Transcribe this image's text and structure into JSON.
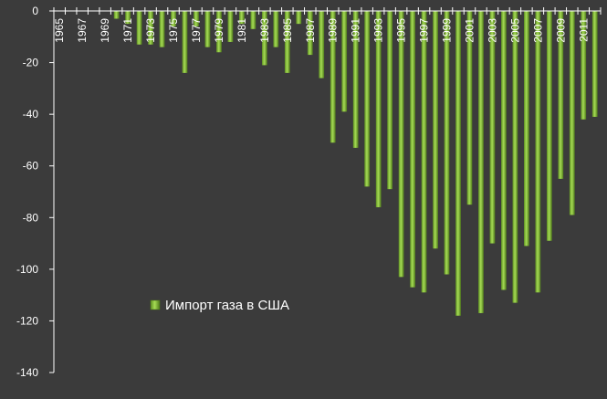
{
  "chart_data": {
    "type": "bar",
    "categories": [
      1965,
      1966,
      1967,
      1968,
      1969,
      1970,
      1971,
      1972,
      1973,
      1974,
      1975,
      1976,
      1977,
      1978,
      1979,
      1980,
      1981,
      1982,
      1983,
      1984,
      1985,
      1986,
      1987,
      1988,
      1989,
      1990,
      1991,
      1992,
      1993,
      1994,
      1995,
      1996,
      1997,
      1998,
      1999,
      2000,
      2001,
      2002,
      2003,
      2004,
      2005,
      2006,
      2007,
      2008,
      2009,
      2010,
      2011,
      2012
    ],
    "tick_labels": [
      "1965",
      "1967",
      "1969",
      "1971",
      "1973",
      "1975",
      "1977",
      "1979",
      "1981",
      "1983",
      "1985",
      "1987",
      "1989",
      "1991",
      "1993",
      "1995",
      "1997",
      "1999",
      "2001",
      "2003",
      "2005",
      "2007",
      "2009",
      "2011"
    ],
    "series": [
      {
        "name": "Импорт газа в США",
        "values": [
          0,
          0,
          0,
          0,
          0,
          -3,
          -5,
          -13,
          -13,
          -14,
          -6,
          -24,
          -6,
          -14,
          -16,
          -12,
          -5,
          -7,
          -21,
          -14,
          -24,
          -5,
          -17,
          -26,
          -51,
          -39,
          -53,
          -68,
          -76,
          -69,
          -103,
          -107,
          -109,
          -92,
          -102,
          -118,
          -75,
          -117,
          -90,
          -108,
          -113,
          -91,
          -109,
          -89,
          -65,
          -79,
          -42,
          -41
        ]
      }
    ],
    "ylim": [
      -140,
      0
    ],
    "y_ticks": [
      0,
      -20,
      -40,
      -60,
      -80,
      -100,
      -120,
      -140
    ],
    "grid": false,
    "legend": "inside-bottom-left",
    "colors": {
      "bar": "#8cc63f",
      "background": "#3b3b3b",
      "axis": "#ffffff",
      "text": "#ffffff"
    }
  }
}
